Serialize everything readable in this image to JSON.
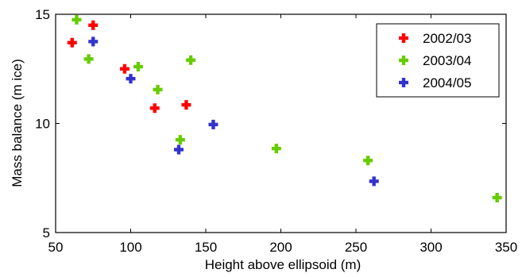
{
  "chart_data": {
    "type": "scatter",
    "xlabel": "Height above ellipsoid (m)",
    "ylabel": "Mass balance (m ice)",
    "xlim": [
      50,
      350
    ],
    "ylim": [
      5,
      15
    ],
    "xticks": [
      "50",
      "100",
      "150",
      "200",
      "250",
      "300",
      "350"
    ],
    "yticks": [
      "5",
      "10",
      "15"
    ],
    "xtick_values": [
      50,
      100,
      150,
      200,
      250,
      300,
      350
    ],
    "ytick_values": [
      5,
      10,
      15
    ],
    "grid": false,
    "legend_position": "top-right",
    "marker": "plus",
    "series": [
      {
        "name": "2002/03",
        "color": "#ff0000",
        "points": [
          [
            61,
            13.7
          ],
          [
            75,
            14.5
          ],
          [
            96,
            12.5
          ],
          [
            116,
            10.7
          ],
          [
            137,
            10.85
          ]
        ]
      },
      {
        "name": "2003/04",
        "color": "#66cc00",
        "points": [
          [
            64,
            14.75
          ],
          [
            72,
            12.95
          ],
          [
            105,
            12.6
          ],
          [
            118,
            11.55
          ],
          [
            133,
            9.25
          ],
          [
            140,
            12.9
          ],
          [
            197,
            8.85
          ],
          [
            258,
            8.3
          ],
          [
            344,
            6.6
          ]
        ]
      },
      {
        "name": "2004/05",
        "color": "#3333cc",
        "points": [
          [
            75,
            13.75
          ],
          [
            100,
            12.05
          ],
          [
            132,
            8.8
          ],
          [
            155,
            9.95
          ],
          [
            262,
            7.35
          ]
        ]
      }
    ]
  }
}
